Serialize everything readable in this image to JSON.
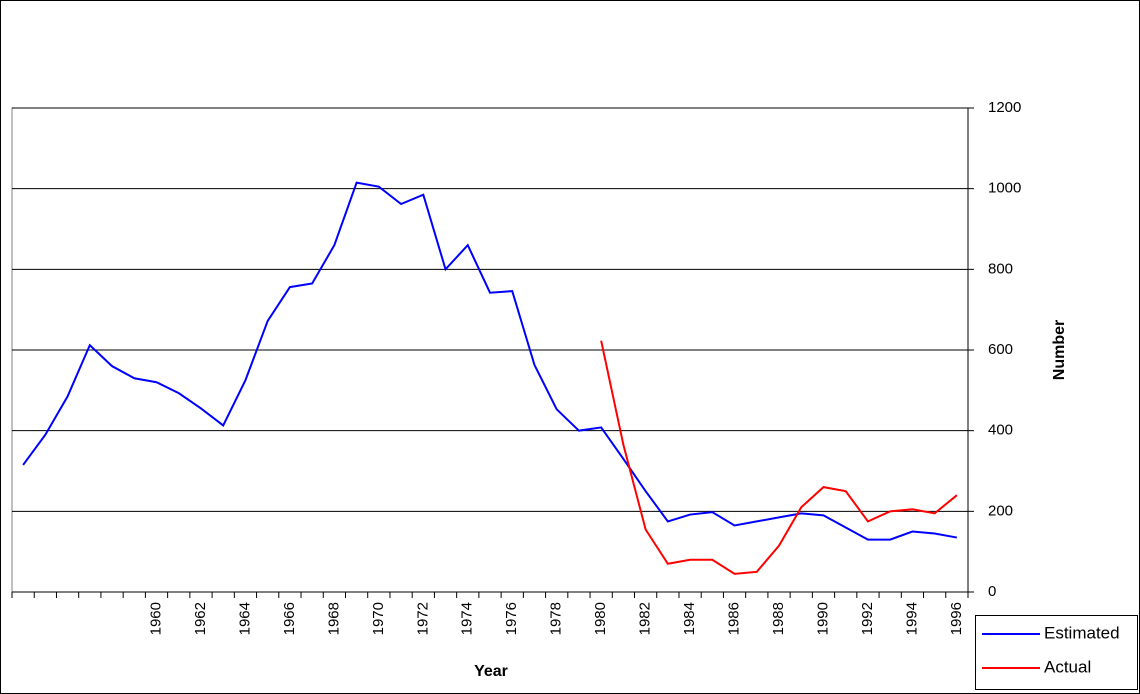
{
  "chart_data": {
    "type": "line",
    "x_label": "Year",
    "y_label": "Number",
    "categories": [
      null,
      null,
      null,
      null,
      null,
      null,
      "1960",
      null,
      "1962",
      null,
      "1964",
      null,
      "1966",
      null,
      "1968",
      null,
      "1970",
      null,
      "1972",
      null,
      "1974",
      null,
      "1976",
      null,
      "1978",
      null,
      "1980",
      null,
      "1982",
      null,
      "1984",
      null,
      "1986",
      null,
      "1988",
      null,
      "1990",
      null,
      "1992",
      null,
      "1994",
      null,
      "1996"
    ],
    "series": [
      {
        "name": "Estimated",
        "color": "#0000ff",
        "values": [
          315,
          390,
          485,
          612,
          560,
          530,
          520,
          493,
          455,
          413,
          525,
          672,
          756,
          765,
          860,
          1015,
          1005,
          962,
          985,
          800,
          860,
          742,
          746,
          563,
          453,
          400,
          408,
          330,
          250,
          175,
          192,
          198,
          165,
          175,
          185,
          195,
          190,
          160,
          130,
          130,
          150,
          145,
          135
        ]
      },
      {
        "name": "Actual",
        "color": "#ff0000",
        "values": [
          null,
          null,
          null,
          null,
          null,
          null,
          null,
          null,
          null,
          null,
          null,
          null,
          null,
          null,
          null,
          null,
          null,
          null,
          null,
          null,
          null,
          null,
          null,
          null,
          null,
          null,
          623,
          365,
          155,
          70,
          80,
          80,
          45,
          50,
          115,
          210,
          260,
          250,
          175,
          200,
          205,
          195,
          240
        ]
      }
    ],
    "ylim": [
      0,
      1200
    ],
    "yticks": [
      0,
      200,
      400,
      600,
      800,
      1000,
      1200
    ],
    "grid": true,
    "y_axis_side": "right",
    "legend_position": "bottom-right"
  }
}
